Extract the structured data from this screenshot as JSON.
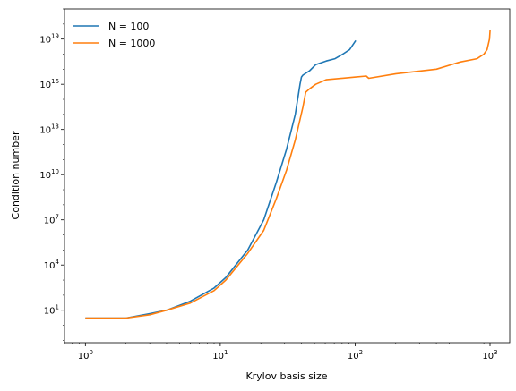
{
  "chart_data": {
    "type": "line",
    "title": "",
    "xlabel": "Krylov basis size",
    "ylabel": "Condition number",
    "xscale": "log",
    "yscale": "log",
    "xlim": [
      0.7,
      1400
    ],
    "ylim": [
      0.07,
      1e+21
    ],
    "grid": false,
    "legend": "top-left",
    "x_ticks": [
      {
        "base": "10",
        "exp": "0",
        "value": 1
      },
      {
        "base": "10",
        "exp": "1",
        "value": 10
      },
      {
        "base": "10",
        "exp": "2",
        "value": 100
      },
      {
        "base": "10",
        "exp": "3",
        "value": 1000
      }
    ],
    "y_ticks": [
      {
        "base": "10",
        "exp": "1",
        "value": 10
      },
      {
        "base": "10",
        "exp": "4",
        "value": 10000.0
      },
      {
        "base": "10",
        "exp": "7",
        "value": 10000000.0
      },
      {
        "base": "10",
        "exp": "10",
        "value": 10000000000.0
      },
      {
        "base": "10",
        "exp": "13",
        "value": 10000000000000.0
      },
      {
        "base": "10",
        "exp": "16",
        "value": 1e+16
      },
      {
        "base": "10",
        "exp": "19",
        "value": 1e+19
      }
    ],
    "series": [
      {
        "name": "N = 100",
        "color": "#1f77b4",
        "x": [
          0,
          1,
          2,
          3,
          5,
          8,
          10,
          15,
          20,
          25,
          30,
          35,
          38,
          39,
          40,
          45,
          50,
          60,
          70,
          80,
          90,
          100
        ],
        "y": [
          3,
          3,
          6,
          10,
          40,
          300,
          1500,
          100000.0,
          10000000.0,
          3000000000.0,
          500000000000.0,
          100000000000000.0,
          1e+16,
          3e+16,
          4e+16,
          8e+16,
          2e+17,
          3.5e+17,
          5e+17,
          1e+18,
          2e+18,
          8e+18
        ]
      },
      {
        "name": "N = 1000",
        "color": "#ff7f0e",
        "x": [
          0,
          1,
          2,
          3,
          5,
          8,
          10,
          15,
          20,
          25,
          30,
          35,
          40,
          42,
          45,
          50,
          60,
          100,
          120,
          125,
          200,
          400,
          600,
          800,
          900,
          950,
          990,
          1000
        ],
        "y": [
          3,
          3,
          5,
          10,
          30,
          200,
          1000,
          60000.0,
          2000000.0,
          250000000.0,
          20000000000.0,
          2000000000000.0,
          300000000000000.0,
          3000000000000000.0,
          5000000000000000.0,
          1e+16,
          2e+16,
          3e+16,
          3.5e+16,
          2.5e+16,
          5e+16,
          1e+17,
          3e+17,
          5e+17,
          1e+18,
          2e+18,
          1e+19,
          4e+19
        ]
      }
    ]
  }
}
